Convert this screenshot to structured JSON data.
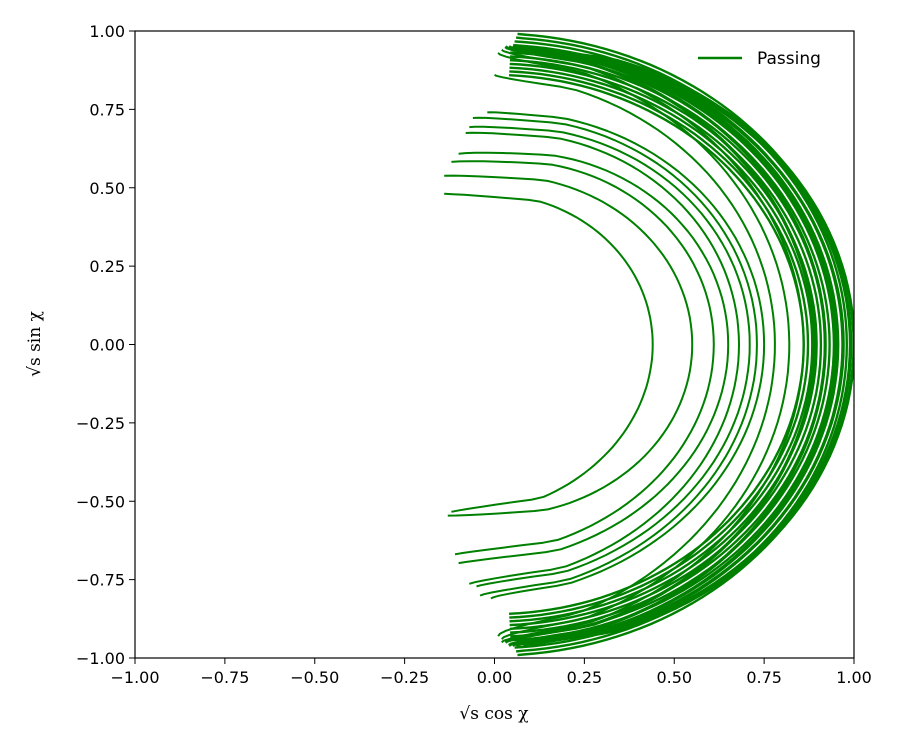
{
  "chart_data": {
    "type": "line",
    "title": "",
    "xlabel": "√s cos χ",
    "ylabel": "√s sin χ",
    "xlim": [
      -1.0,
      1.0
    ],
    "ylim": [
      -1.0,
      1.0
    ],
    "grid": false,
    "legend_position": "top-right",
    "xticks": [
      -1.0,
      -0.75,
      -0.5,
      -0.25,
      0.0,
      0.25,
      0.5,
      0.75,
      1.0
    ],
    "yticks": [
      -1.0,
      -0.75,
      -0.5,
      -0.25,
      0.0,
      0.25,
      0.5,
      0.75,
      1.0
    ],
    "xtick_labels": [
      "−1.00",
      "−0.75",
      "−0.50",
      "−0.25",
      "0.00",
      "0.25",
      "0.50",
      "0.75",
      "1.00"
    ],
    "ytick_labels": [
      "−1.00",
      "−0.75",
      "−0.50",
      "−0.25",
      "0.00",
      "0.25",
      "0.50",
      "0.75",
      "1.00"
    ],
    "series": [
      {
        "name": "Passing",
        "color": "#008000",
        "loops": [
          {
            "r_inner": 0.44,
            "top": [
              -0.14,
              0.46
            ],
            "bottom": [
              -0.12,
              -0.52
            ]
          },
          {
            "r_inner": 0.55,
            "top": [
              -0.14,
              0.52
            ],
            "bottom": [
              -0.13,
              -0.53
            ]
          },
          {
            "r_inner": 0.61,
            "top": [
              -0.12,
              0.57
            ],
            "bottom": [
              -0.11,
              -0.66
            ]
          },
          {
            "r_inner": 0.65,
            "top": [
              -0.1,
              0.6
            ],
            "bottom": [
              -0.1,
              -0.69
            ]
          },
          {
            "r_inner": 0.68,
            "top": [
              -0.08,
              0.67
            ],
            "bottom": [
              -0.07,
              -0.76
            ]
          },
          {
            "r_inner": 0.71,
            "top": [
              -0.07,
              0.69
            ],
            "bottom": [
              -0.05,
              -0.77
            ]
          },
          {
            "r_inner": 0.73,
            "top": [
              -0.06,
              0.72
            ],
            "bottom": [
              -0.04,
              -0.8
            ]
          },
          {
            "r_inner": 0.75,
            "top": [
              -0.02,
              0.74
            ],
            "bottom": [
              -0.01,
              -0.81
            ]
          },
          {
            "r_inner": 0.78,
            "top": [
              0.0,
              0.86
            ],
            "bottom": [
              0.01,
              -0.93
            ]
          },
          {
            "r_inner": 0.82,
            "top": [
              0.01,
              0.93
            ],
            "bottom": [
              0.02,
              -0.94
            ]
          },
          {
            "r_inner": 0.86,
            "top": [
              0.02,
              0.94
            ],
            "bottom": [
              0.02,
              -0.95
            ]
          },
          {
            "r_inner": 0.89,
            "top": [
              0.03,
              0.95
            ],
            "bottom": [
              0.03,
              -0.95
            ]
          },
          {
            "r_inner": 0.92,
            "top": [
              0.04,
              0.95
            ],
            "bottom": [
              0.04,
              -0.96
            ]
          },
          {
            "r_inner": 0.95,
            "top": [
              0.05,
              0.95
            ],
            "bottom": [
              0.05,
              -0.96
            ]
          },
          {
            "r_inner": 0.97,
            "top": [
              0.06,
              0.95
            ],
            "bottom": [
              0.06,
              -0.96
            ]
          },
          {
            "r_inner": 0.99,
            "top": [
              0.08,
              0.95
            ],
            "bottom": [
              0.08,
              -0.96
            ]
          },
          {
            "r_inner": 1.0,
            "top": [
              0.1,
              0.95
            ],
            "bottom": [
              0.1,
              -0.96
            ]
          }
        ]
      }
    ]
  }
}
